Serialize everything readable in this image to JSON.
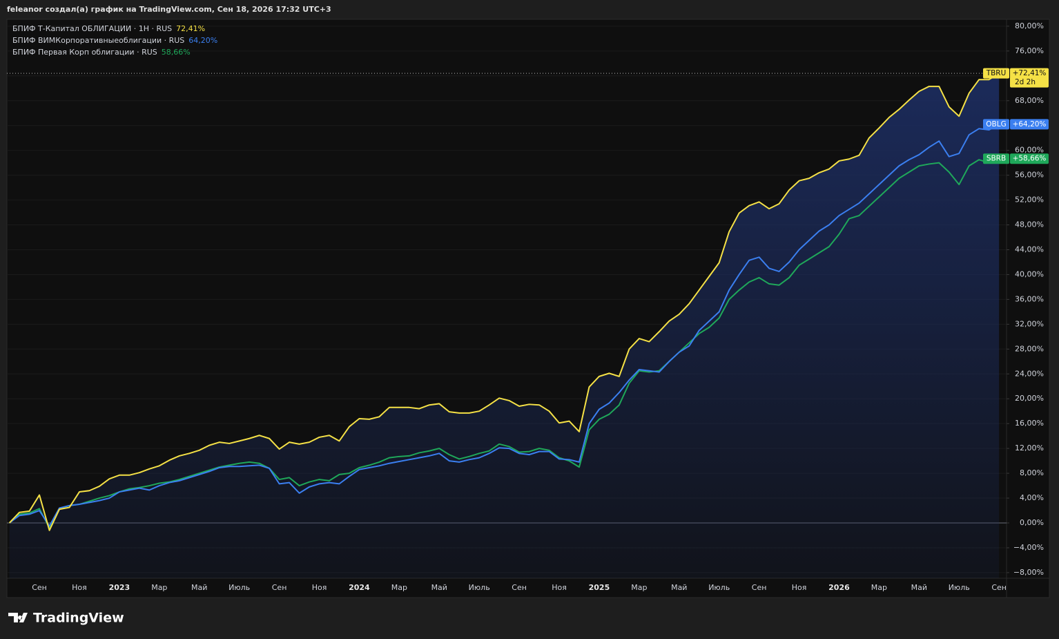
{
  "chart_data": {
    "type": "line",
    "title": "feleanor создал(а) график на TradingView.com, Сен 18, 2026 17:32 UTC+3",
    "brand": "TradingView",
    "categories": [
      null,
      null,
      null,
      "Сен",
      null,
      null,
      null,
      "Ноя",
      null,
      null,
      null,
      "2023",
      null,
      null,
      null,
      "Мар",
      null,
      null,
      null,
      "Май",
      null,
      null,
      null,
      "Июль",
      null,
      null,
      null,
      "Сен",
      null,
      null,
      null,
      "Ноя",
      null,
      null,
      null,
      "2024",
      null,
      null,
      null,
      "Мар",
      null,
      null,
      null,
      "Май",
      null,
      null,
      null,
      "Июль",
      null,
      null,
      null,
      "Сен",
      null,
      null,
      null,
      "Ноя",
      null,
      null,
      null,
      "2025",
      null,
      null,
      null,
      "Мар",
      null,
      null,
      null,
      "Май",
      null,
      null,
      null,
      "Июль",
      null,
      null,
      null,
      "Сен",
      null,
      null,
      null,
      "Ноя",
      null,
      null,
      null,
      "2026",
      null,
      null,
      null,
      "Мар",
      null,
      null,
      null,
      "Май",
      null,
      null,
      null,
      "Июль",
      null,
      null,
      null,
      "Сен"
    ],
    "series": [
      {
        "name": "БПИФ Т-Капитал ОБЛИГАЦИИ · 1Н · RUS",
        "legend_value": "72,41%",
        "symbol": "TBRU",
        "tag_label": "+72,41%",
        "countdown": "2d 2h",
        "color": "#f5e146",
        "values": [
          0,
          1.7,
          1.9,
          4.5,
          -1.2,
          2.2,
          2.5,
          5.0,
          5.2,
          5.9,
          7.1,
          7.7,
          7.7,
          8.1,
          8.7,
          9.2,
          10.1,
          10.8,
          11.2,
          11.7,
          12.5,
          13.0,
          12.8,
          13.2,
          13.6,
          14.1,
          13.6,
          11.9,
          13.0,
          12.7,
          13.0,
          13.8,
          14.1,
          13.2,
          15.5,
          16.8,
          16.7,
          17.1,
          18.6,
          18.6,
          18.6,
          18.4,
          19.0,
          19.2,
          17.9,
          17.7,
          17.7,
          18.0,
          19.0,
          20.1,
          19.7,
          18.8,
          19.1,
          19.0,
          18.0,
          16.1,
          16.4,
          14.7,
          21.9,
          23.6,
          24.1,
          23.6,
          28.0,
          29.7,
          29.2,
          30.8,
          32.5,
          33.6,
          35.3,
          37.5,
          39.7,
          41.9,
          46.9,
          49.9,
          51.1,
          51.7,
          50.6,
          51.4,
          53.6,
          55.1,
          55.5,
          56.4,
          57.0,
          58.3,
          58.6,
          59.2,
          62.0,
          63.6,
          65.3,
          66.6,
          68.1,
          69.5,
          70.3,
          70.3,
          67.0,
          65.5,
          69.2,
          71.4,
          71.4,
          72.41
        ]
      },
      {
        "name": "БПИФ ВИМКорпоративныеоблигации · RUS",
        "legend_value": "64,20%",
        "symbol": "OBLG",
        "tag_label": "+64,20%",
        "color": "#3b7ff0",
        "values": [
          0,
          1.2,
          1.4,
          2.0,
          -0.5,
          2.4,
          2.8,
          3.0,
          3.3,
          3.6,
          4.0,
          5.0,
          5.3,
          5.6,
          5.3,
          6.0,
          6.5,
          6.8,
          7.3,
          7.8,
          8.3,
          8.9,
          9.1,
          9.1,
          9.2,
          9.3,
          8.8,
          6.3,
          6.5,
          4.8,
          5.8,
          6.3,
          6.5,
          6.3,
          7.5,
          8.6,
          8.9,
          9.2,
          9.6,
          9.9,
          10.2,
          10.5,
          10.8,
          11.2,
          10.0,
          9.8,
          10.2,
          10.5,
          11.2,
          12.1,
          12.0,
          11.2,
          11.0,
          11.5,
          11.5,
          10.3,
          10.2,
          9.8,
          16.0,
          18.3,
          19.3,
          21.0,
          23.0,
          24.7,
          24.5,
          24.3,
          26.0,
          27.5,
          28.5,
          31.0,
          32.5,
          34.0,
          37.5,
          40.0,
          42.3,
          42.8,
          41.0,
          40.5,
          42.0,
          44.0,
          45.5,
          47.0,
          48.0,
          49.5,
          50.5,
          51.5,
          53.0,
          54.5,
          56.0,
          57.5,
          58.5,
          59.3,
          60.5,
          61.5,
          59.0,
          59.5,
          62.5,
          63.5,
          63.3,
          64.2
        ]
      },
      {
        "name": "БПИФ Первая Корп облигации · RUS",
        "legend_value": "58,66%",
        "symbol": "SBRB",
        "tag_label": "+58,66%",
        "color": "#1fa85a",
        "values": [
          0,
          1.4,
          1.6,
          2.3,
          -0.8,
          2.3,
          2.8,
          3.0,
          3.5,
          4.0,
          4.4,
          5.0,
          5.5,
          5.7,
          6.0,
          6.4,
          6.6,
          7.0,
          7.5,
          8.0,
          8.5,
          9.0,
          9.3,
          9.6,
          9.8,
          9.6,
          8.8,
          7.0,
          7.3,
          6.0,
          6.6,
          7.0,
          6.8,
          7.8,
          8.0,
          8.9,
          9.3,
          9.8,
          10.5,
          10.7,
          10.8,
          11.3,
          11.6,
          12.0,
          11.0,
          10.3,
          10.7,
          11.2,
          11.6,
          12.7,
          12.3,
          11.4,
          11.5,
          12.0,
          11.7,
          10.5,
          10.0,
          9.0,
          15.0,
          16.7,
          17.5,
          19.0,
          22.5,
          24.5,
          24.3,
          24.5,
          26.0,
          27.5,
          29.0,
          30.5,
          31.5,
          33.0,
          36.0,
          37.5,
          38.8,
          39.5,
          38.5,
          38.3,
          39.5,
          41.5,
          42.5,
          43.5,
          44.5,
          46.5,
          49.0,
          49.5,
          51.0,
          52.5,
          54.0,
          55.5,
          56.5,
          57.5,
          57.8,
          58.0,
          56.5,
          54.5,
          57.5,
          58.5,
          58.0,
          58.66
        ]
      }
    ],
    "ylim": [
      -8.9,
      81.1
    ],
    "yticks": [
      {
        "value": -8,
        "label": "−8,00%"
      },
      {
        "value": -4,
        "label": "−4,00%"
      },
      {
        "value": 0,
        "label": "0,00%"
      },
      {
        "value": 4,
        "label": "4,00%"
      },
      {
        "value": 8,
        "label": "8,00%"
      },
      {
        "value": 12,
        "label": "12,00%"
      },
      {
        "value": 16,
        "label": "16,00%"
      },
      {
        "value": 20,
        "label": "20,00%"
      },
      {
        "value": 24,
        "label": "24,00%"
      },
      {
        "value": 28,
        "label": "28,00%"
      },
      {
        "value": 32,
        "label": "32,00%"
      },
      {
        "value": 36,
        "label": "36,00%"
      },
      {
        "value": 40,
        "label": "40,00%"
      },
      {
        "value": 44,
        "label": "44,00%"
      },
      {
        "value": 48,
        "label": "48,00%"
      },
      {
        "value": 52,
        "label": "52,00%"
      },
      {
        "value": 56,
        "label": "56,00%"
      },
      {
        "value": 60,
        "label": "60,00%"
      },
      {
        "value": 64,
        "label": "64,00%"
      },
      {
        "value": 68,
        "label": "68,00%"
      },
      {
        "value": 72,
        "label": "72,00%"
      },
      {
        "value": 76,
        "label": "76,00%"
      },
      {
        "value": 80,
        "label": "80,00%"
      }
    ],
    "grid": true
  }
}
